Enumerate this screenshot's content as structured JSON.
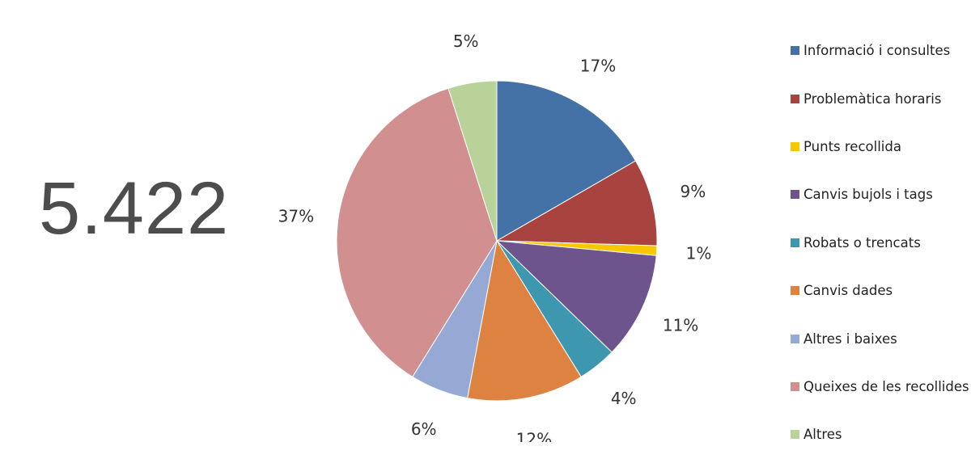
{
  "headline_value": "5.422",
  "chart_data": {
    "type": "pie",
    "title": "",
    "legend_position": "right",
    "slices": [
      {
        "name": "Informació i consultes",
        "value": 17,
        "label": "17%",
        "color": "#4471a6"
      },
      {
        "name": "Problemàtica horaris",
        "value": 9,
        "label": "9%",
        "color": "#a84340"
      },
      {
        "name": "Punts recollida",
        "value": 1,
        "label": "1%",
        "color": "#f7c700"
      },
      {
        "name": "Canvis bujols i tags",
        "value": 11,
        "label": "11%",
        "color": "#6e548d"
      },
      {
        "name": "Robats o trencats",
        "value": 4,
        "label": "4%",
        "color": "#3d97ae"
      },
      {
        "name": "Canvis dades",
        "value": 12,
        "label": "12%",
        "color": "#dd8240"
      },
      {
        "name": "Altres i baixes",
        "value": 6,
        "label": "6%",
        "color": "#96a9d4"
      },
      {
        "name": "Queixes de les recollides",
        "value": 37,
        "label": "37%",
        "color": "#d1908f"
      },
      {
        "name": "Altres",
        "value": 5,
        "label": "5%",
        "color": "#b9d29a"
      }
    ]
  }
}
